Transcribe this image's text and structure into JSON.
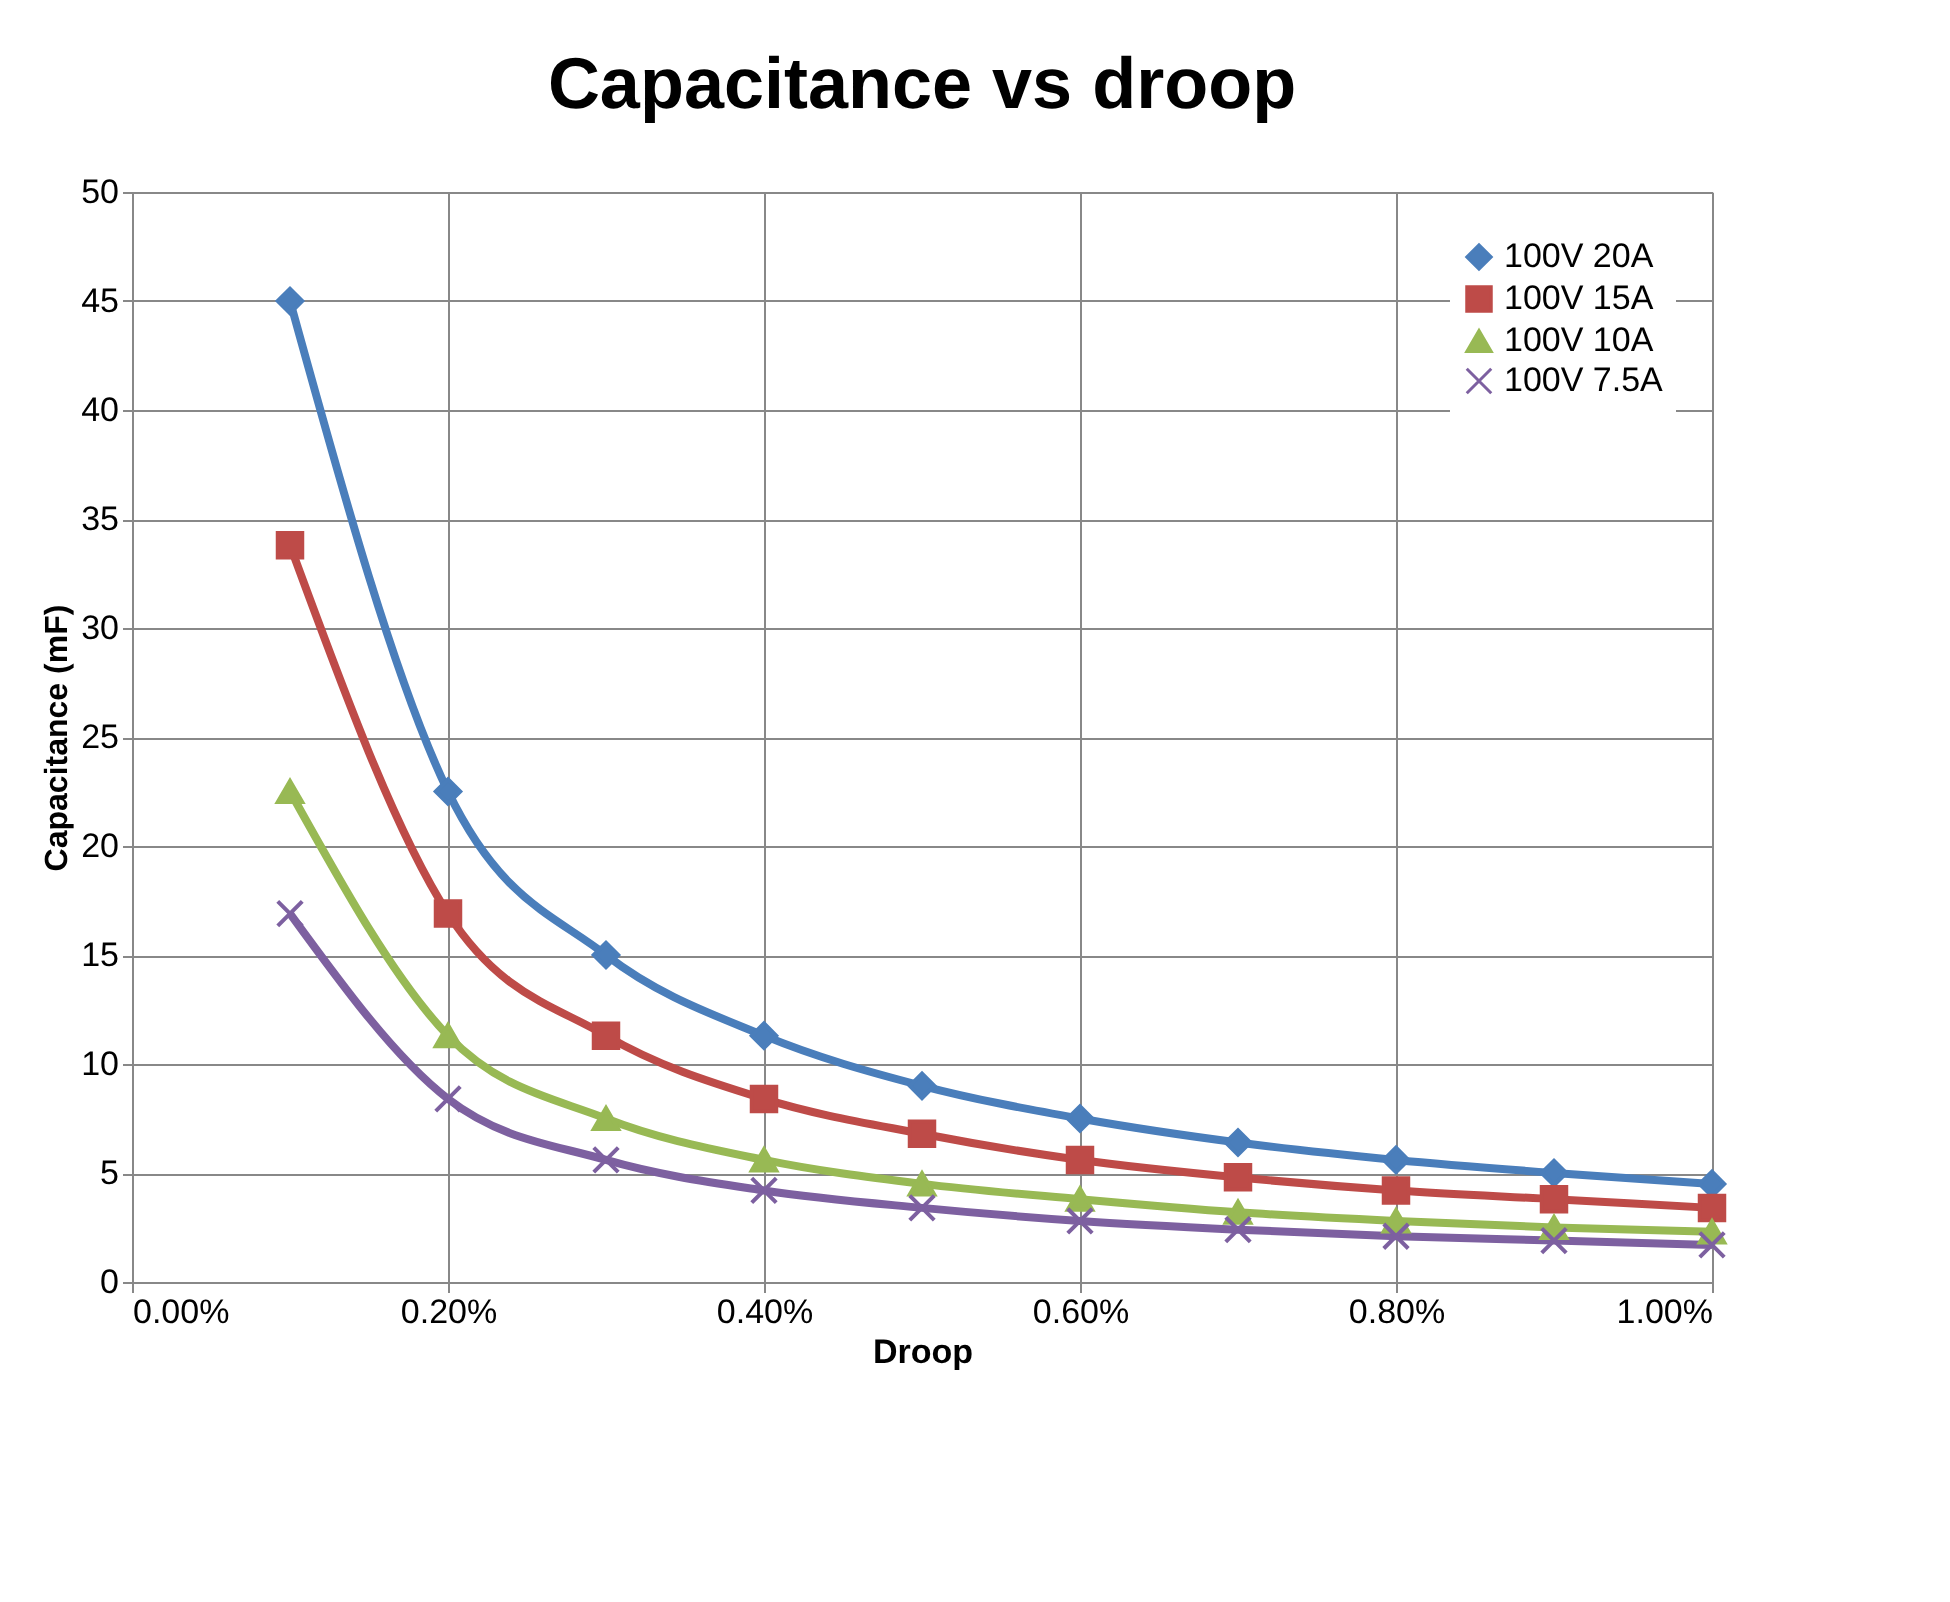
{
  "chart_data": {
    "type": "line",
    "title": "Capacitance vs droop",
    "xlabel": "Droop",
    "ylabel": "Capacitance (mF)",
    "x": [
      0.1,
      0.2,
      0.3,
      0.4,
      0.5,
      0.6,
      0.7,
      0.8,
      0.9,
      1.0
    ],
    "series": [
      {
        "name": "100V 20A",
        "color": "#4a7ebb",
        "marker": "diamond",
        "values": [
          45,
          22.5,
          15,
          11.3,
          9,
          7.5,
          6.4,
          5.6,
          5,
          4.5
        ]
      },
      {
        "name": "100V 15A",
        "color": "#be4b48",
        "marker": "square",
        "values": [
          33.8,
          16.9,
          11.3,
          8.4,
          6.8,
          5.6,
          4.8,
          4.2,
          3.8,
          3.4
        ]
      },
      {
        "name": "100V 10A",
        "color": "#98b954",
        "marker": "triangle",
        "values": [
          22.5,
          11.3,
          7.5,
          5.6,
          4.5,
          3.8,
          3.2,
          2.8,
          2.5,
          2.3
        ]
      },
      {
        "name": "100V 7.5A",
        "color": "#7d60a0",
        "marker": "cross",
        "values": [
          16.9,
          8.4,
          5.6,
          4.2,
          3.4,
          2.8,
          2.4,
          2.1,
          1.9,
          1.7
        ]
      }
    ],
    "xlim": [
      0,
      1.0
    ],
    "xticks": [
      {
        "value": 0,
        "label": "0.00%"
      },
      {
        "value": 0.2,
        "label": "0.20%"
      },
      {
        "value": 0.4,
        "label": "0.40%"
      },
      {
        "value": 0.6,
        "label": "0.60%"
      },
      {
        "value": 0.8,
        "label": "0.80%"
      },
      {
        "value": 1.0,
        "label": "1.00%"
      }
    ],
    "ylim": [
      0,
      50
    ],
    "yticks": [
      0,
      5,
      10,
      15,
      20,
      25,
      30,
      35,
      40,
      45,
      50
    ],
    "grid": true,
    "legend": "top right",
    "line_style": "solid"
  }
}
